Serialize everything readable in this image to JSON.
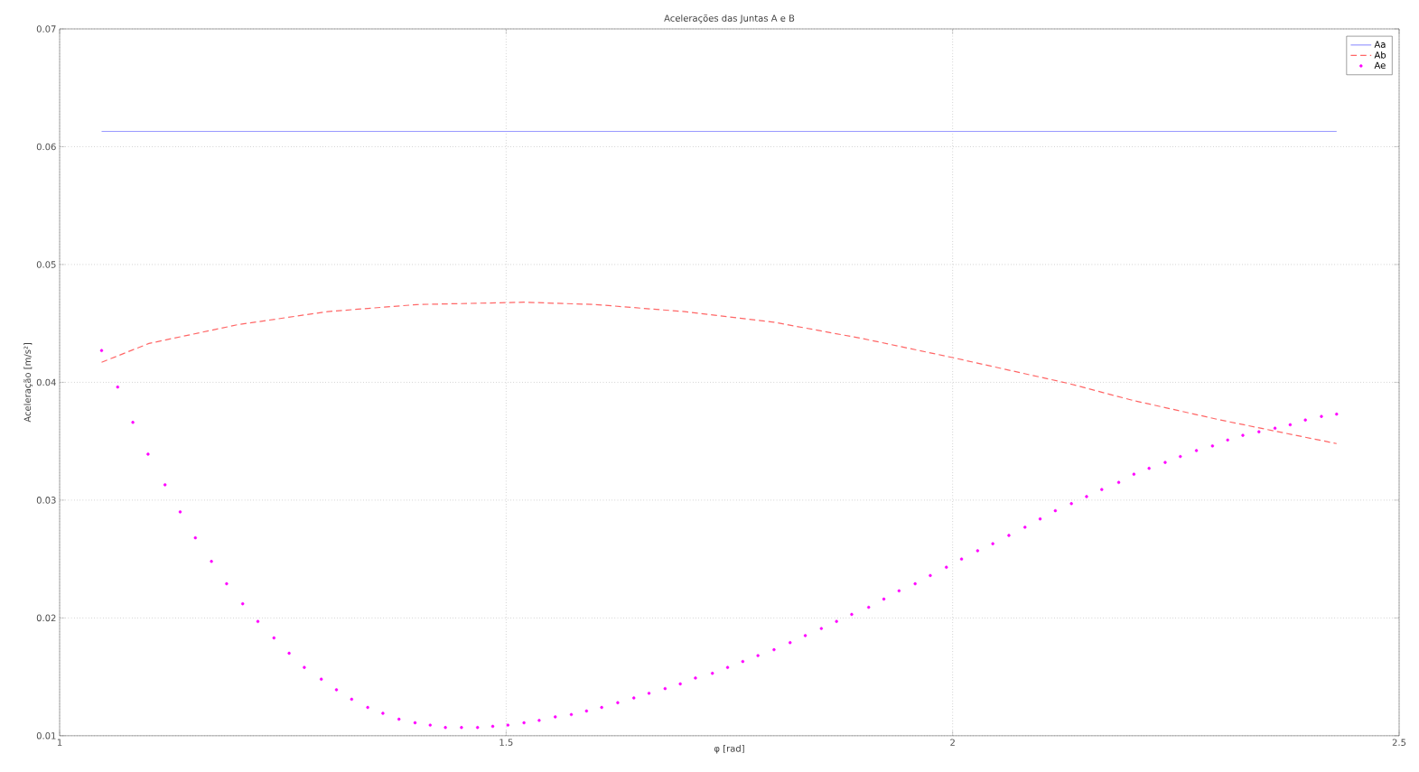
{
  "chart_data": {
    "type": "line",
    "title": "Acelerações das Juntas A e B",
    "xlabel": "φ  [rad]",
    "ylabel": "Aceleração  [m/s²]",
    "xlim": [
      1,
      2.5
    ],
    "ylim": [
      0.01,
      0.07
    ],
    "xticks": [
      1,
      1.5,
      2,
      2.5
    ],
    "yticks": [
      0.01,
      0.02,
      0.03,
      0.04,
      0.05,
      0.06,
      0.07
    ],
    "grid": true,
    "legend": "top right",
    "series": [
      {
        "name": "Aa",
        "color": "#9999ff",
        "line_style": "solid",
        "marker": "none",
        "x": [
          1.047,
          2.43
        ],
        "values": [
          0.0613,
          0.0613
        ]
      },
      {
        "name": "Ab",
        "color": "#ff6666",
        "line_style": "dashed",
        "marker": "none",
        "x": [
          1.047,
          1.1,
          1.2,
          1.3,
          1.4,
          1.52,
          1.6,
          1.7,
          1.8,
          1.9,
          2.0,
          2.13,
          2.2,
          2.3,
          2.43
        ],
        "values": [
          0.0417,
          0.0433,
          0.0449,
          0.046,
          0.0466,
          0.0468,
          0.0466,
          0.046,
          0.0451,
          0.0437,
          0.0421,
          0.0399,
          0.0385,
          0.0368,
          0.0348
        ]
      },
      {
        "name": "Ae",
        "type": "scatter",
        "color": "#ff00ff",
        "marker": "circle",
        "x": [
          1.047,
          1.065,
          1.082,
          1.099,
          1.118,
          1.135,
          1.152,
          1.17,
          1.187,
          1.205,
          1.222,
          1.24,
          1.257,
          1.274,
          1.293,
          1.31,
          1.327,
          1.345,
          1.362,
          1.38,
          1.398,
          1.415,
          1.432,
          1.45,
          1.468,
          1.485,
          1.502,
          1.52,
          1.537,
          1.555,
          1.573,
          1.59,
          1.607,
          1.625,
          1.643,
          1.66,
          1.678,
          1.695,
          1.712,
          1.731,
          1.748,
          1.765,
          1.782,
          1.8,
          1.818,
          1.835,
          1.853,
          1.87,
          1.887,
          1.906,
          1.923,
          1.94,
          1.958,
          1.975,
          1.993,
          2.01,
          2.028,
          2.045,
          2.063,
          2.081,
          2.098,
          2.115,
          2.133,
          2.15,
          2.167,
          2.186,
          2.203,
          2.22,
          2.238,
          2.255,
          2.273,
          2.291,
          2.308,
          2.325,
          2.343,
          2.361,
          2.378,
          2.395,
          2.413,
          2.43
        ],
        "values": [
          0.0427,
          0.0396,
          0.0366,
          0.0339,
          0.0313,
          0.029,
          0.0268,
          0.0248,
          0.0229,
          0.0212,
          0.0197,
          0.0183,
          0.017,
          0.0158,
          0.0148,
          0.0139,
          0.0131,
          0.0124,
          0.0119,
          0.0114,
          0.0111,
          0.0109,
          0.0107,
          0.0107,
          0.0107,
          0.0108,
          0.0109,
          0.0111,
          0.0113,
          0.0116,
          0.0118,
          0.0121,
          0.0124,
          0.0128,
          0.0132,
          0.0136,
          0.014,
          0.0144,
          0.0149,
          0.0153,
          0.0158,
          0.0163,
          0.0168,
          0.0173,
          0.0179,
          0.0185,
          0.0191,
          0.0197,
          0.0203,
          0.0209,
          0.0216,
          0.0223,
          0.0229,
          0.0236,
          0.0243,
          0.025,
          0.0257,
          0.0263,
          0.027,
          0.0277,
          0.0284,
          0.0291,
          0.0297,
          0.0303,
          0.0309,
          0.0315,
          0.0322,
          0.0327,
          0.0332,
          0.0337,
          0.0342,
          0.0346,
          0.0351,
          0.0355,
          0.0358,
          0.0361,
          0.0364,
          0.0368,
          0.0371,
          0.0373
        ]
      }
    ]
  }
}
